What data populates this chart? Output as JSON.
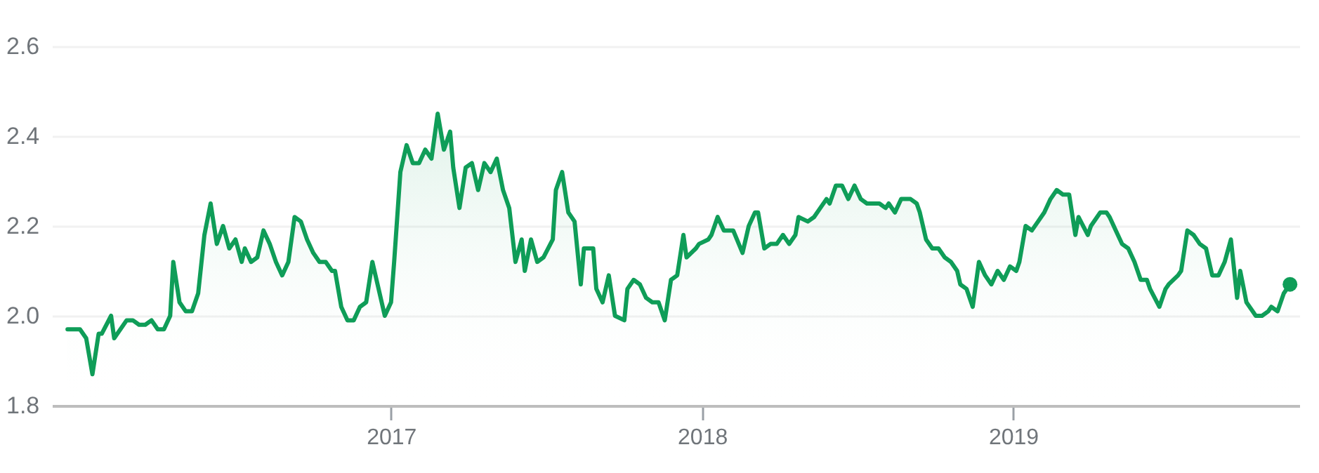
{
  "chart_data": {
    "type": "area",
    "xlim": [
      2015.91,
      2019.92
    ],
    "xticks": [
      2017,
      2018,
      2019
    ],
    "ylim": [
      1.8,
      2.6
    ],
    "yticks": [
      1.8,
      {
        "value": 2,
        "label": "2.0"
      },
      2.2,
      2.4,
      2.6
    ],
    "grid": "y",
    "series": [
      {
        "color": "#0f9d58",
        "x": [
          2015.96,
          2016.0,
          2016.02,
          2016.04,
          2016.06,
          2016.07,
          2016.1,
          2016.11,
          2016.15,
          2016.17,
          2016.19,
          2016.21,
          2016.23,
          2016.25,
          2016.27,
          2016.29,
          2016.3,
          2016.32,
          2016.34,
          2016.36,
          2016.38,
          2016.4,
          2016.42,
          2016.44,
          2016.46,
          2016.48,
          2016.5,
          2016.52,
          2016.53,
          2016.55,
          2016.57,
          2016.59,
          2016.61,
          2016.63,
          2016.65,
          2016.67,
          2016.69,
          2016.71,
          2016.73,
          2016.75,
          2016.77,
          2016.79,
          2016.81,
          2016.82,
          2016.84,
          2016.86,
          2016.88,
          2016.9,
          2016.92,
          2016.94,
          2016.95,
          2016.98,
          2017.0,
          2017.01,
          2017.03,
          2017.05,
          2017.07,
          2017.09,
          2017.11,
          2017.13,
          2017.15,
          2017.17,
          2017.19,
          2017.2,
          2017.22,
          2017.24,
          2017.26,
          2017.28,
          2017.3,
          2017.32,
          2017.34,
          2017.36,
          2017.38,
          2017.4,
          2017.42,
          2017.43,
          2017.45,
          2017.47,
          2017.49,
          2017.52,
          2017.53,
          2017.55,
          2017.57,
          2017.59,
          2017.61,
          2017.62,
          2017.65,
          2017.66,
          2017.68,
          2017.7,
          2017.72,
          2017.75,
          2017.76,
          2017.78,
          2017.8,
          2017.82,
          2017.84,
          2017.86,
          2017.88,
          2017.9,
          2017.92,
          2017.94,
          2017.95,
          2017.98,
          2017.99,
          2018.02,
          2018.03,
          2018.05,
          2018.07,
          2018.1,
          2018.13,
          2018.15,
          2018.17,
          2018.18,
          2018.2,
          2018.22,
          2018.24,
          2018.26,
          2018.28,
          2018.3,
          2018.31,
          2018.34,
          2018.36,
          2018.38,
          2018.4,
          2018.41,
          2018.43,
          2018.45,
          2018.47,
          2018.49,
          2018.51,
          2018.53,
          2018.57,
          2018.59,
          2018.6,
          2018.62,
          2018.64,
          2018.67,
          2018.69,
          2018.7,
          2018.72,
          2018.74,
          2018.76,
          2018.78,
          2018.8,
          2018.82,
          2018.83,
          2018.85,
          2018.87,
          2018.89,
          2018.91,
          2018.93,
          2018.95,
          2018.97,
          2018.99,
          2019.01,
          2019.02,
          2019.04,
          2019.06,
          2019.08,
          2019.1,
          2019.12,
          2019.14,
          2019.16,
          2019.18,
          2019.2,
          2019.21,
          2019.24,
          2019.25,
          2019.28,
          2019.3,
          2019.31,
          2019.33,
          2019.35,
          2019.37,
          2019.39,
          2019.41,
          2019.43,
          2019.44,
          2019.47,
          2019.49,
          2019.5,
          2019.53,
          2019.54,
          2019.56,
          2019.58,
          2019.6,
          2019.62,
          2019.64,
          2019.66,
          2019.68,
          2019.7,
          2019.72,
          2019.73,
          2019.75,
          2019.78,
          2019.8,
          2019.82,
          2019.83,
          2019.85,
          2019.87,
          2019.89
        ],
        "values": [
          1.97,
          1.97,
          1.95,
          1.87,
          1.96,
          1.96,
          2.0,
          1.95,
          1.99,
          1.99,
          1.98,
          1.98,
          1.99,
          1.97,
          1.97,
          2.0,
          2.12,
          2.03,
          2.01,
          2.01,
          2.05,
          2.18,
          2.25,
          2.16,
          2.2,
          2.15,
          2.17,
          2.12,
          2.15,
          2.12,
          2.13,
          2.19,
          2.16,
          2.12,
          2.09,
          2.12,
          2.22,
          2.21,
          2.17,
          2.14,
          2.12,
          2.12,
          2.1,
          2.1,
          2.02,
          1.99,
          1.99,
          2.02,
          2.03,
          2.12,
          2.09,
          2.0,
          2.03,
          2.12,
          2.32,
          2.38,
          2.34,
          2.34,
          2.37,
          2.35,
          2.45,
          2.37,
          2.41,
          2.33,
          2.24,
          2.33,
          2.34,
          2.28,
          2.34,
          2.32,
          2.35,
          2.28,
          2.24,
          2.12,
          2.17,
          2.1,
          2.17,
          2.12,
          2.13,
          2.17,
          2.28,
          2.32,
          2.23,
          2.21,
          2.07,
          2.15,
          2.15,
          2.06,
          2.03,
          2.09,
          2.0,
          1.99,
          2.06,
          2.08,
          2.07,
          2.04,
          2.03,
          2.03,
          1.99,
          2.08,
          2.09,
          2.18,
          2.13,
          2.15,
          2.16,
          2.17,
          2.18,
          2.22,
          2.19,
          2.19,
          2.14,
          2.2,
          2.23,
          2.23,
          2.15,
          2.16,
          2.16,
          2.18,
          2.16,
          2.18,
          2.22,
          2.21,
          2.22,
          2.24,
          2.26,
          2.25,
          2.29,
          2.29,
          2.26,
          2.29,
          2.26,
          2.25,
          2.25,
          2.24,
          2.25,
          2.23,
          2.26,
          2.26,
          2.25,
          2.23,
          2.17,
          2.15,
          2.15,
          2.13,
          2.12,
          2.1,
          2.07,
          2.06,
          2.02,
          2.12,
          2.09,
          2.07,
          2.1,
          2.08,
          2.11,
          2.1,
          2.12,
          2.2,
          2.19,
          2.21,
          2.23,
          2.26,
          2.28,
          2.27,
          2.27,
          2.18,
          2.22,
          2.18,
          2.2,
          2.23,
          2.23,
          2.22,
          2.19,
          2.16,
          2.15,
          2.12,
          2.08,
          2.08,
          2.06,
          2.02,
          2.06,
          2.07,
          2.09,
          2.1,
          2.19,
          2.18,
          2.16,
          2.15,
          2.09,
          2.09,
          2.12,
          2.17,
          2.04,
          2.1,
          2.03,
          2.0,
          2.0,
          2.01,
          2.02,
          2.01,
          2.05,
          2.07
        ]
      },
      {
        "type": "scatter",
        "color": "#0f9d58",
        "x": [
          2019.89
        ],
        "values": [
          2.07
        ]
      }
    ]
  }
}
